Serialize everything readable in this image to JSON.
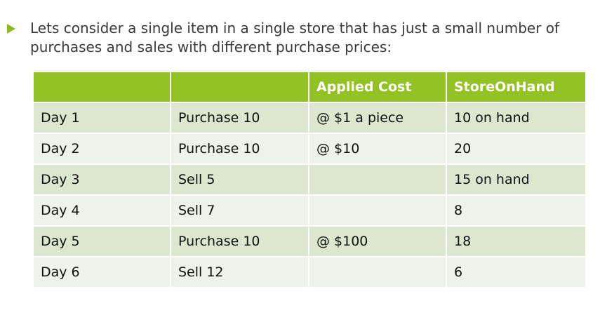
{
  "intro": "Lets consider a single item in a single store that has just a small number of purchases and sales with different purchase prices:",
  "table": {
    "headers": [
      "",
      "",
      "Applied Cost",
      "StoreOnHand"
    ],
    "rows": [
      [
        "Day 1",
        "Purchase 10",
        "@ $1 a piece",
        "10 on hand"
      ],
      [
        "Day 2",
        "Purchase 10",
        "@ $10",
        "20"
      ],
      [
        "Day 3",
        "Sell 5",
        "",
        "15 on hand"
      ],
      [
        "Day 4",
        "Sell 7",
        "",
        "8"
      ],
      [
        "Day 5",
        "Purchase 10",
        "@ $100",
        "18"
      ],
      [
        "Day 6",
        "Sell 12",
        "",
        "6"
      ]
    ]
  },
  "colors": {
    "header": "#93c225",
    "row_odd": "#dbe8cf",
    "row_even": "#edf3e8",
    "bullet": "#8cbb26"
  }
}
